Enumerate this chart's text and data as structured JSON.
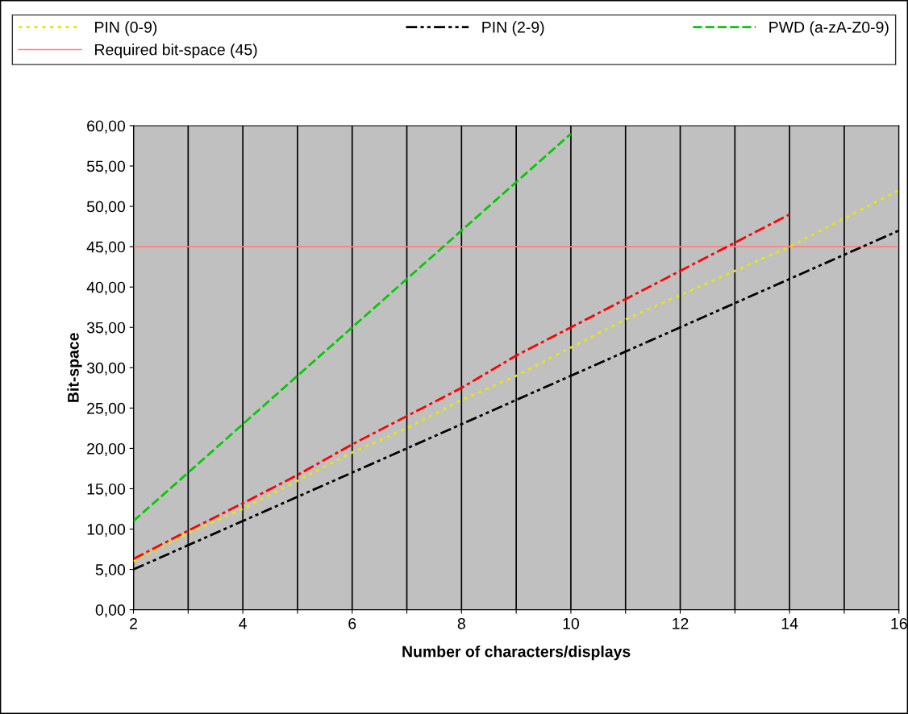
{
  "chart_data": {
    "type": "line",
    "xlabel": "Number of characters/displays",
    "ylabel": "Bit-space",
    "x": [
      2,
      3,
      4,
      5,
      6,
      7,
      8,
      9,
      10,
      11,
      12,
      13,
      14,
      15,
      16
    ],
    "series": [
      {
        "name": "PIN (0-9)",
        "color": "#e8e800",
        "line_style": "dotted",
        "values": [
          6,
          9.5,
          12.5,
          16,
          19.5,
          22.5,
          26,
          29,
          32.5,
          36,
          39,
          42,
          45,
          48.5,
          52
        ]
      },
      {
        "name": "PIN (2-9)",
        "color": "#000000",
        "line_style": "dashdotdot",
        "values": [
          5,
          8,
          11,
          14,
          17,
          20,
          23,
          26,
          29,
          32,
          35,
          38,
          41,
          44,
          47
        ]
      },
      {
        "name": "PWD (a-zA-Z0-9)",
        "color": "#00cc00",
        "line_style": "dashed",
        "values": [
          11,
          17,
          23,
          29,
          35,
          41,
          47,
          53,
          59,
          null,
          null,
          null,
          null,
          null,
          null
        ]
      },
      {
        "color": "#ff0000",
        "line_style": "dashdot",
        "values": [
          6.3,
          9.8,
          13.2,
          16.7,
          20.5,
          24,
          27.5,
          31.5,
          35,
          38.5,
          42,
          45.5,
          49,
          null,
          null
        ]
      }
    ],
    "ref_lines": [
      {
        "axis": "y",
        "value": 45,
        "label": "Required bit-space (45)",
        "color": "#ff8080",
        "line_style": "solid"
      }
    ],
    "xlim": [
      2,
      16
    ],
    "xticks": [
      2,
      {
        "value": 3,
        "label": null
      },
      4,
      {
        "value": 5,
        "label": null
      },
      6,
      {
        "value": 7,
        "label": null
      },
      8,
      {
        "value": 9,
        "label": null
      },
      10,
      {
        "value": 11,
        "label": null
      },
      12,
      {
        "value": 13,
        "label": null
      },
      14,
      {
        "value": 15,
        "label": null
      },
      16
    ],
    "ylim": [
      0,
      60
    ],
    "yticks": [
      {
        "value": 0,
        "label": "0,00"
      },
      {
        "value": 5,
        "label": "5,00"
      },
      {
        "value": 10,
        "label": "10,00"
      },
      {
        "value": 15,
        "label": "15,00"
      },
      {
        "value": 20,
        "label": "20,00"
      },
      {
        "value": 25,
        "label": "25,00"
      },
      {
        "value": 30,
        "label": "30,00"
      },
      {
        "value": 35,
        "label": "35,00"
      },
      {
        "value": 40,
        "label": "40,00"
      },
      {
        "value": 45,
        "label": "45,00"
      },
      {
        "value": 50,
        "label": "50,00"
      },
      {
        "value": 55,
        "label": "55,00"
      },
      {
        "value": 60,
        "label": "60,00"
      }
    ],
    "grid": "x",
    "legend": "top",
    "marker": "none"
  }
}
